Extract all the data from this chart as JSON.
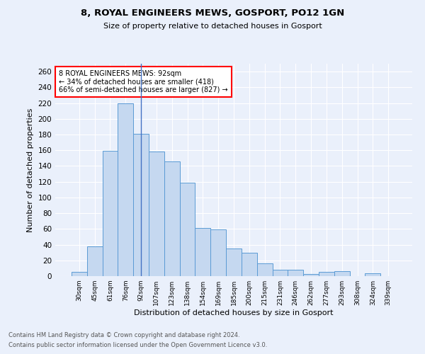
{
  "title1": "8, ROYAL ENGINEERS MEWS, GOSPORT, PO12 1GN",
  "title2": "Size of property relative to detached houses in Gosport",
  "xlabel": "Distribution of detached houses by size in Gosport",
  "ylabel": "Number of detached properties",
  "categories": [
    "30sqm",
    "45sqm",
    "61sqm",
    "76sqm",
    "92sqm",
    "107sqm",
    "123sqm",
    "138sqm",
    "154sqm",
    "169sqm",
    "185sqm",
    "200sqm",
    "215sqm",
    "231sqm",
    "246sqm",
    "262sqm",
    "277sqm",
    "293sqm",
    "308sqm",
    "324sqm",
    "339sqm"
  ],
  "values": [
    5,
    38,
    159,
    220,
    181,
    158,
    146,
    119,
    61,
    59,
    35,
    30,
    16,
    8,
    8,
    3,
    5,
    6,
    0,
    4,
    0
  ],
  "bar_color": "#c5d8f0",
  "bar_edge_color": "#5b9bd5",
  "highlight_index": 4,
  "highlight_line_color": "#4472c4",
  "annotation_text": "8 ROYAL ENGINEERS MEWS: 92sqm\n← 34% of detached houses are smaller (418)\n66% of semi-detached houses are larger (827) →",
  "annotation_box_color": "white",
  "annotation_box_edge_color": "red",
  "ylim": [
    0,
    270
  ],
  "yticks": [
    0,
    20,
    40,
    60,
    80,
    100,
    120,
    140,
    160,
    180,
    200,
    220,
    240,
    260
  ],
  "footer1": "Contains HM Land Registry data © Crown copyright and database right 2024.",
  "footer2": "Contains public sector information licensed under the Open Government Licence v3.0.",
  "bg_color": "#eaf0fb",
  "grid_color": "white"
}
